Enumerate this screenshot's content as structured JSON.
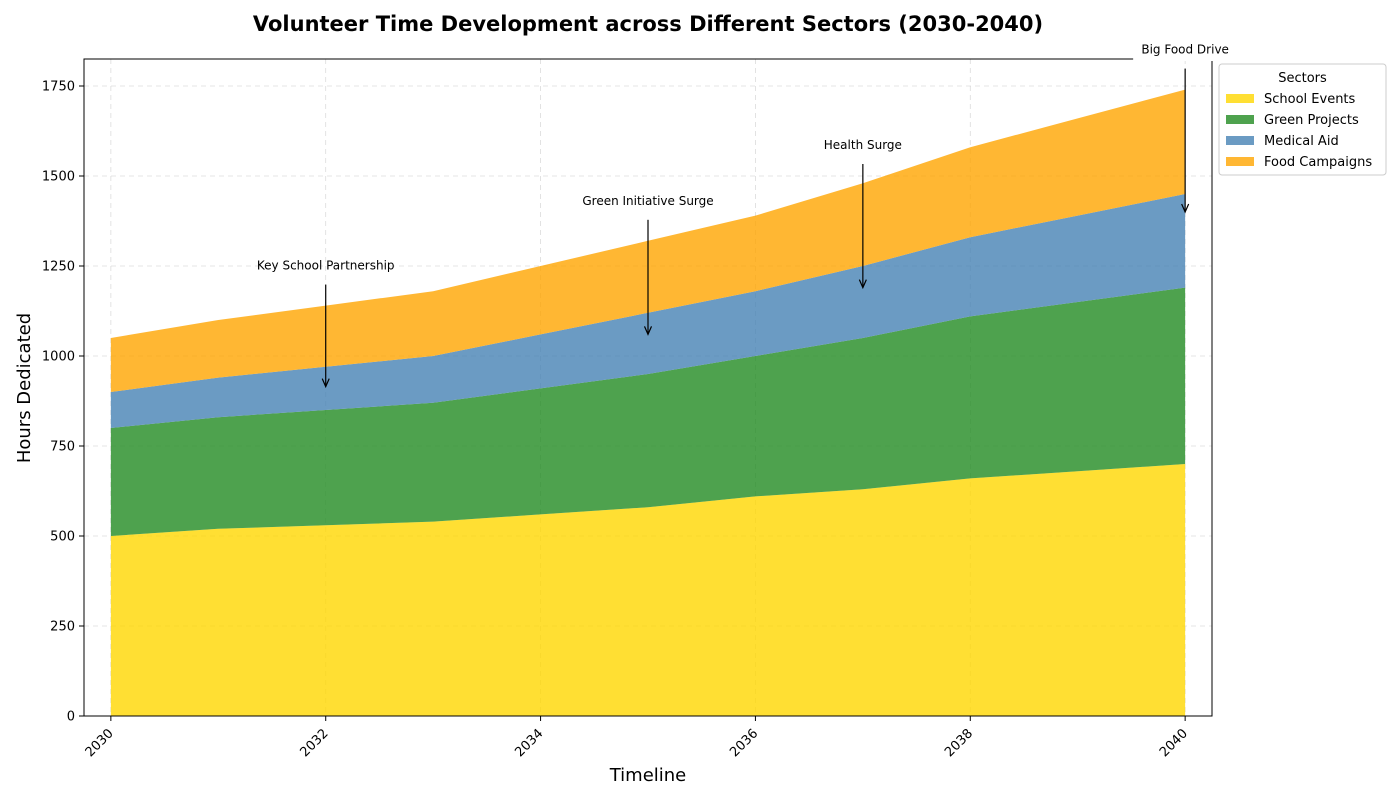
{
  "chart_data": {
    "type": "area",
    "stacked": true,
    "title": "Volunteer Time Development across Different Sectors (2030-2040)",
    "xlabel": "Timeline",
    "ylabel": "Hours Dedicated",
    "x": [
      2030,
      2031,
      2032,
      2033,
      2034,
      2035,
      2036,
      2037,
      2038,
      2039,
      2040
    ],
    "xlim": [
      2029.75,
      2040.25
    ],
    "ylim": [
      0,
      1825
    ],
    "xticks": [
      2030,
      2032,
      2034,
      2036,
      2038,
      2040
    ],
    "yticks": [
      0,
      250,
      500,
      750,
      1000,
      1250,
      1500,
      1750
    ],
    "grid": true,
    "legend": {
      "title": "Sectors",
      "placement": "outside-top-right"
    },
    "series": [
      {
        "name": "School Events",
        "color": "#FFD700",
        "values": [
          500,
          520,
          530,
          540,
          560,
          580,
          610,
          630,
          660,
          680,
          700
        ]
      },
      {
        "name": "Green Projects",
        "color": "#228B22",
        "values": [
          300,
          310,
          320,
          330,
          350,
          370,
          390,
          420,
          450,
          470,
          490
        ]
      },
      {
        "name": "Medical Aid",
        "color": "#4682B4",
        "values": [
          100,
          110,
          120,
          130,
          150,
          170,
          180,
          200,
          220,
          240,
          260
        ]
      },
      {
        "name": "Food Campaigns",
        "color": "#FFA500",
        "values": [
          150,
          160,
          170,
          180,
          190,
          200,
          210,
          230,
          250,
          270,
          290
        ]
      }
    ],
    "annotations": [
      {
        "text": "Key School Partnership",
        "x": 2032,
        "y": 915,
        "text_y": 1240
      },
      {
        "text": "Green Initiative Surge",
        "x": 2035,
        "y": 1060,
        "text_y": 1420
      },
      {
        "text": "Health Surge",
        "x": 2037,
        "y": 1190,
        "text_y": 1575
      },
      {
        "text": "Big Food Drive",
        "x": 2040,
        "y": 1400,
        "text_y": 1840
      }
    ]
  }
}
